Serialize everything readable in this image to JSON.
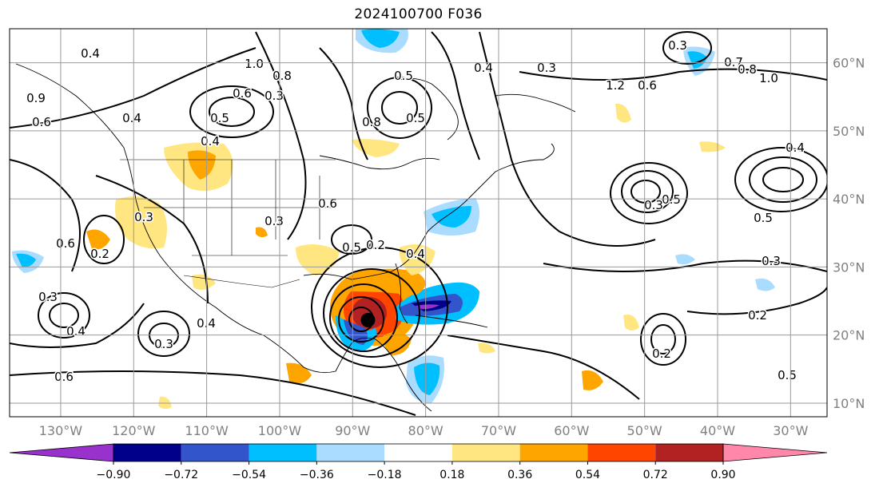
{
  "title": "2024100700 F036",
  "map": {
    "lat_labels": [
      "60°N",
      "50°N",
      "40°N",
      "30°N",
      "20°N",
      "10°N"
    ],
    "lon_labels": [
      "130°W",
      "120°W",
      "110°W",
      "100°W",
      "90°W",
      "80°W",
      "70°W",
      "60°W",
      "50°W",
      "40°W",
      "30°W"
    ],
    "extent": {
      "lon_min": -137,
      "lon_max": -25,
      "lat_min": 8,
      "lat_max": 65
    },
    "storm_marker": {
      "lon": -87.9,
      "lat": 22.2,
      "icon": "hurricane-center-dot"
    },
    "contour_labels": [
      "0.4",
      "1.0",
      "0.8",
      "0.9",
      "0.6",
      "0.5",
      "0.4",
      "0.3",
      "1.2",
      "0.6",
      "0.3",
      "0.7",
      "1.0",
      "0.8",
      "0.4",
      "0.5",
      "0.8",
      "0.5",
      "0.6",
      "0.4",
      "0.3",
      "0.6",
      "0.5",
      "0.3",
      "0.5",
      "0.4",
      "0.3",
      "0.3",
      "0.6",
      "0.2",
      "0.5",
      "0.4",
      "0.2",
      "0.3",
      "0.6",
      "0.3",
      "0.4",
      "0.2",
      "0.5",
      "0.3",
      "0.4",
      "0.2"
    ]
  },
  "colorbar": {
    "labels": [
      "−0.90",
      "−0.72",
      "−0.54",
      "−0.36",
      "−0.18",
      "0.18",
      "0.36",
      "0.54",
      "0.72",
      "0.90"
    ],
    "colors": [
      "#9932cc",
      "#00008b",
      "#3355cc",
      "#00bfff",
      "#aadcff",
      "#ffffff",
      "#ffe680",
      "#ffa500",
      "#ff4500",
      "#b22222",
      "#ff88aa"
    ]
  }
}
